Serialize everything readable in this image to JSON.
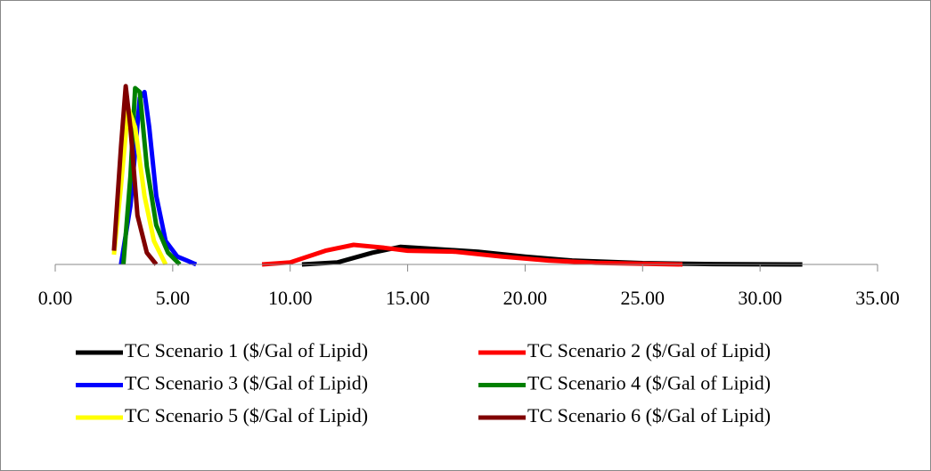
{
  "chart_data": {
    "type": "line",
    "xlim": [
      0,
      35
    ],
    "xticks": [
      {
        "value": 0,
        "label": "0.00"
      },
      {
        "value": 5,
        "label": "5.00"
      },
      {
        "value": 10,
        "label": "10.00"
      },
      {
        "value": 15,
        "label": "15.00"
      },
      {
        "value": 20,
        "label": "20.00"
      },
      {
        "value": 25,
        "label": "25.00"
      },
      {
        "value": 30,
        "label": "30.00"
      },
      {
        "value": 35,
        "label": "35.00"
      }
    ],
    "ylim": [
      0,
      1
    ],
    "series": [
      {
        "name": "TC Scenario 1 ($/Gal of Lipid)",
        "color": "#000000",
        "x": [
          10.5,
          12,
          13.5,
          14.7,
          16,
          18,
          20,
          22,
          25,
          28,
          31.8
        ],
        "values": [
          0,
          0.01,
          0.06,
          0.09,
          0.08,
          0.065,
          0.04,
          0.02,
          0.007,
          0.002,
          0
        ]
      },
      {
        "name": "TC Scenario 2 ($/Gal of Lipid)",
        "color": "#ff0000",
        "x": [
          8.8,
          10,
          11.5,
          12.7,
          14,
          15,
          17,
          19,
          21,
          23,
          26.7
        ],
        "values": [
          0,
          0.01,
          0.07,
          0.1,
          0.085,
          0.07,
          0.065,
          0.04,
          0.02,
          0.008,
          0
        ]
      },
      {
        "name": "TC Scenario 3 ($/Gal of Lipid)",
        "color": "#0000ff",
        "x": [
          2.8,
          3.2,
          3.6,
          3.8,
          4.0,
          4.3,
          4.7,
          5.2,
          5.6,
          6.0
        ],
        "values": [
          0,
          0.3,
          0.85,
          0.88,
          0.7,
          0.35,
          0.12,
          0.04,
          0.02,
          0
        ]
      },
      {
        "name": "TC Scenario 4 ($/Gal of Lipid)",
        "color": "#008000",
        "x": [
          2.9,
          3.2,
          3.4,
          3.6,
          3.9,
          4.3,
          4.8,
          5.3
        ],
        "values": [
          0,
          0.45,
          0.9,
          0.88,
          0.5,
          0.2,
          0.06,
          0
        ]
      },
      {
        "name": "TC Scenario 5 ($/Gal of Lipid)",
        "color": "#ffff00",
        "x": [
          2.5,
          2.8,
          3.1,
          3.4,
          3.8,
          4.2,
          4.7
        ],
        "values": [
          0.05,
          0.4,
          0.8,
          0.7,
          0.35,
          0.12,
          0
        ]
      },
      {
        "name": "TC Scenario 6 ($/Gal of Lipid)",
        "color": "#800000",
        "x": [
          2.5,
          2.8,
          3.0,
          3.2,
          3.5,
          3.9,
          4.3
        ],
        "values": [
          0.07,
          0.6,
          0.91,
          0.7,
          0.25,
          0.06,
          0
        ]
      }
    ]
  }
}
